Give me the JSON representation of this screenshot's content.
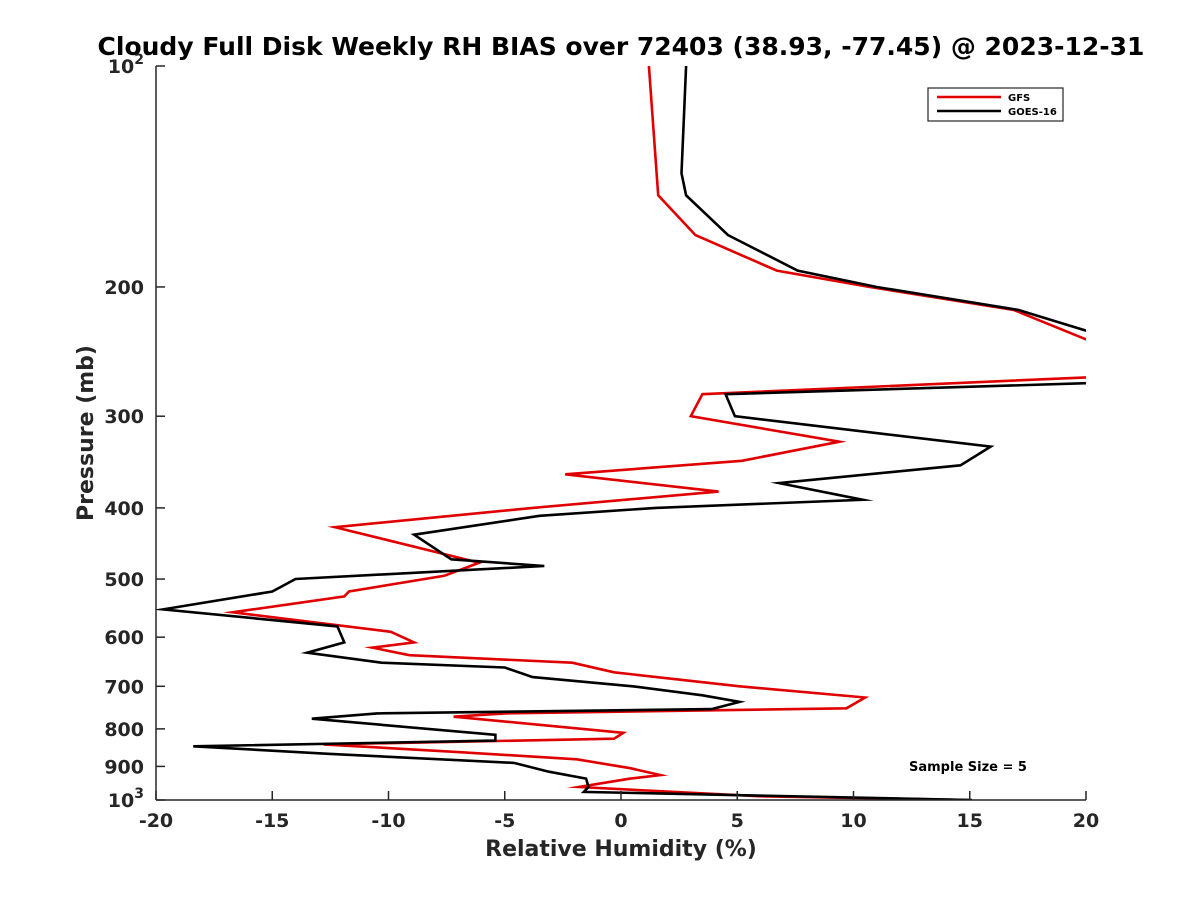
{
  "chart_data": {
    "type": "line",
    "title": "Cloudy Full Disk Weekly RH BIAS over 72403 (38.93, -77.45) @ 2023-12-31",
    "xlabel": "Relative Humidity (%)",
    "ylabel": "Pressure (mb)",
    "xlim": [
      -20,
      20
    ],
    "ylim": [
      100,
      1000
    ],
    "yscale": "log",
    "y_reversed": true,
    "grid": false,
    "legend_position": "top-right",
    "x_ticks": [
      "-20",
      "-15",
      "-10",
      "-5",
      "0",
      "5",
      "10",
      "15",
      "20"
    ],
    "y_ticks": [
      {
        "value": 100,
        "base": "10",
        "exp": "2"
      },
      {
        "value": 200,
        "label": "200"
      },
      {
        "value": 300,
        "label": "300"
      },
      {
        "value": 400,
        "label": "400"
      },
      {
        "value": 500,
        "label": "500"
      },
      {
        "value": 600,
        "label": "600"
      },
      {
        "value": 700,
        "label": "700"
      },
      {
        "value": 800,
        "label": "800"
      },
      {
        "value": 900,
        "label": "900"
      },
      {
        "value": 1000,
        "base": "10",
        "exp": "3"
      }
    ],
    "annotation": "Sample Size = 5",
    "series": [
      {
        "name": "GFS",
        "color": "#e00000",
        "points": [
          [
            1.2,
            100
          ],
          [
            1.6,
            150
          ],
          [
            3.2,
            170
          ],
          [
            6.7,
            190
          ],
          [
            10.7,
            200
          ],
          [
            16.9,
            215
          ],
          [
            20.6,
            240
          ],
          [
            20.7,
            265
          ],
          [
            3.5,
            280
          ],
          [
            3.0,
            300
          ],
          [
            9.4,
            325
          ],
          [
            5.2,
            345
          ],
          [
            -2.4,
            360
          ],
          [
            4.2,
            380
          ],
          [
            -3.8,
            400
          ],
          [
            -12.3,
            425
          ],
          [
            -6.1,
            475
          ],
          [
            -7.6,
            495
          ],
          [
            -11.7,
            520
          ],
          [
            -11.9,
            528
          ],
          [
            -16.7,
            555
          ],
          [
            -9.9,
            590
          ],
          [
            -8.9,
            610
          ],
          [
            -10.7,
            620
          ],
          [
            -9.1,
            635
          ],
          [
            -2.1,
            650
          ],
          [
            -0.3,
            670
          ],
          [
            5.1,
            700
          ],
          [
            10.5,
            725
          ],
          [
            9.7,
            750
          ],
          [
            -5.0,
            762
          ],
          [
            -7.2,
            770
          ],
          [
            0.1,
            810
          ],
          [
            -0.3,
            825
          ],
          [
            -12.8,
            840
          ],
          [
            -7.1,
            860
          ],
          [
            -1.9,
            880
          ],
          [
            0.4,
            905
          ],
          [
            1.7,
            925
          ],
          [
            0.4,
            935
          ],
          [
            -1.8,
            960
          ],
          [
            5.9,
            988
          ],
          [
            15.0,
            1000
          ]
        ]
      },
      {
        "name": "GOES-16",
        "color": "#000000",
        "points": [
          [
            2.8,
            100
          ],
          [
            2.6,
            140
          ],
          [
            2.8,
            150
          ],
          [
            4.6,
            170
          ],
          [
            7.6,
            190
          ],
          [
            11.0,
            200
          ],
          [
            17.1,
            215
          ],
          [
            21.1,
            235
          ],
          [
            20.9,
            270
          ],
          [
            4.5,
            280
          ],
          [
            4.9,
            300
          ],
          [
            15.9,
            330
          ],
          [
            14.6,
            350
          ],
          [
            6.8,
            370
          ],
          [
            10.4,
            390
          ],
          [
            1.5,
            400
          ],
          [
            -3.5,
            410
          ],
          [
            -8.9,
            435
          ],
          [
            -7.3,
            470
          ],
          [
            -3.3,
            480
          ],
          [
            -14.0,
            500
          ],
          [
            -15.0,
            520
          ],
          [
            -19.7,
            550
          ],
          [
            -12.2,
            580
          ],
          [
            -11.9,
            610
          ],
          [
            -13.5,
            630
          ],
          [
            -10.3,
            650
          ],
          [
            -5.0,
            660
          ],
          [
            -3.8,
            680
          ],
          [
            0.5,
            700
          ],
          [
            3.5,
            720
          ],
          [
            5.1,
            735
          ],
          [
            3.9,
            752
          ],
          [
            -10.5,
            762
          ],
          [
            -13.3,
            775
          ],
          [
            -5.4,
            815
          ],
          [
            -5.4,
            830
          ],
          [
            -18.4,
            845
          ],
          [
            -12.6,
            865
          ],
          [
            -4.6,
            890
          ],
          [
            -3.1,
            915
          ],
          [
            -1.5,
            935
          ],
          [
            -1.4,
            960
          ],
          [
            -1.6,
            975
          ],
          [
            15.1,
            1000
          ]
        ]
      }
    ]
  }
}
